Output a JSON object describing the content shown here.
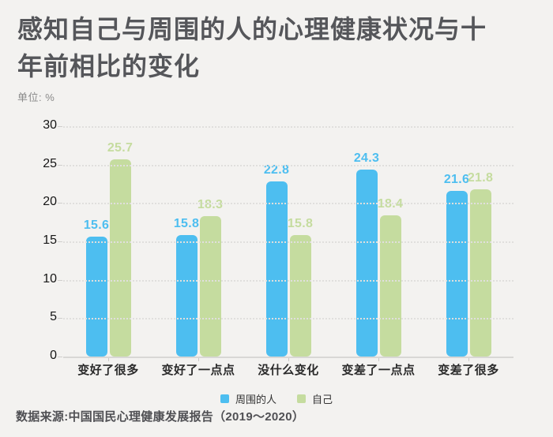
{
  "header": {
    "title": "感知自己与周围的人的心理健康状况与十年前相比的变化",
    "unit_label": "单位: %"
  },
  "footer": {
    "source": "数据来源:中国国民心理健康发展报告（2019～2020）"
  },
  "colors": {
    "background": "#F3F2F0",
    "series_people_around": "#4DBEF0",
    "series_self": "#C5DC9F",
    "title_text": "#55565A",
    "grid_line": "#E0DFDD",
    "axis_line": "#D8D7D5",
    "unit_text": "#8A8A8A"
  },
  "chart_data": {
    "type": "bar",
    "title": "感知自己与周围的人的心理健康状况与十年前相比的变化",
    "ylabel": "单位: %",
    "xlabel": "",
    "categories": [
      "变好了很多",
      "变好了一点点",
      "没什么变化",
      "变差了一点点",
      "变差了很多"
    ],
    "series": [
      {
        "name": "周围的人",
        "color": "#4DBEF0",
        "values": [
          15.6,
          15.8,
          22.8,
          24.3,
          21.6
        ]
      },
      {
        "name": "自己",
        "color": "#C5DC9F",
        "values": [
          25.7,
          18.3,
          15.8,
          18.4,
          21.8
        ]
      }
    ],
    "ylim": [
      0,
      30
    ],
    "yticks": [
      0,
      5,
      10,
      15,
      20,
      25,
      30
    ],
    "grid": "horizontal-dotted",
    "legend_position": "bottom",
    "value_labels": true
  }
}
